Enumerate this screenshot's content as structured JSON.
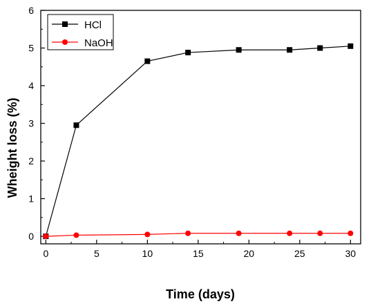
{
  "chart_data": {
    "type": "line",
    "title": "",
    "xlabel": "Time (days)",
    "ylabel": "Wheight loss (%)",
    "xlim": [
      -0.5,
      31
    ],
    "ylim": [
      -0.2,
      6
    ],
    "xticks": [
      0,
      5,
      10,
      15,
      20,
      25,
      30
    ],
    "yticks": [
      0,
      1,
      2,
      3,
      4,
      5,
      6
    ],
    "grid": false,
    "legend_position": "top-left",
    "series": [
      {
        "name": "HCl",
        "color": "#000000",
        "marker": "square",
        "x": [
          0,
          3,
          10,
          14,
          19,
          24,
          27,
          30
        ],
        "y": [
          0.0,
          2.95,
          4.65,
          4.88,
          4.95,
          4.95,
          5.0,
          5.05
        ]
      },
      {
        "name": "NaOH",
        "color": "#ff0000",
        "marker": "circle",
        "x": [
          0,
          3,
          10,
          14,
          19,
          24,
          27,
          30
        ],
        "y": [
          0.0,
          0.03,
          0.05,
          0.08,
          0.08,
          0.08,
          0.08,
          0.08
        ]
      }
    ]
  }
}
